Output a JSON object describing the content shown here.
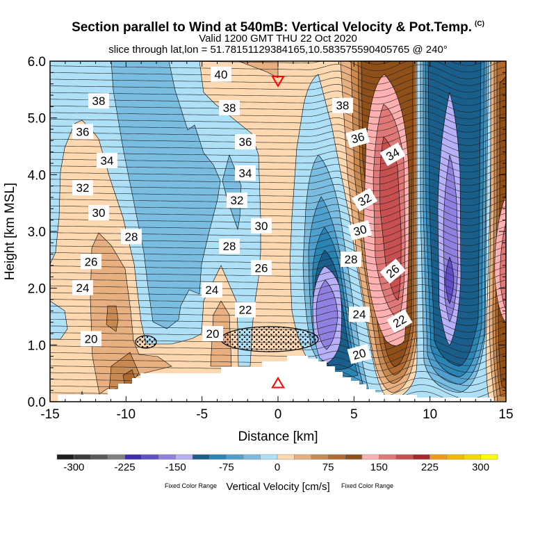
{
  "chart_data": {
    "type": "contour",
    "title": "Section parallel to Wind at 540mB: Vertical Velocity & Pot.Temp.",
    "title_mark": "(C)",
    "subtitle": "Valid 1200 GMT THU 22 Oct 2020",
    "subtitle2": "slice through lat,lon = 51.78151129384165,10.583575590405765 @ 240°",
    "xlabel": "Distance [km]",
    "ylabel": "Height [km MSL]",
    "xlim": [
      -15,
      15
    ],
    "ylim": [
      0,
      6
    ],
    "xticks": [
      "-15",
      "-10",
      "-5",
      "0",
      "5",
      "10",
      "15"
    ],
    "yticks": [
      "0.0",
      "1.0",
      "2.0",
      "3.0",
      "4.0",
      "5.0",
      "6.0"
    ],
    "filled_field": "Vertical Velocity [cm/s]",
    "contour_field": "Potential Temperature",
    "isentrope_labels": [
      {
        "value": "38",
        "x": -11.8,
        "h": 5.3
      },
      {
        "value": "36",
        "x": -12.85,
        "h": 4.76
      },
      {
        "value": "34",
        "x": -11.25,
        "h": 4.25
      },
      {
        "value": "32",
        "x": -12.85,
        "h": 3.77
      },
      {
        "value": "30",
        "x": -11.8,
        "h": 3.33
      },
      {
        "value": "28",
        "x": -9.65,
        "h": 2.91
      },
      {
        "value": "26",
        "x": -12.3,
        "h": 2.47
      },
      {
        "value": "24",
        "x": -12.85,
        "h": 2.01
      },
      {
        "value": "20",
        "x": -12.3,
        "h": 1.11
      },
      {
        "value": "40",
        "x": -3.75,
        "h": 5.77
      },
      {
        "value": "38",
        "x": -3.2,
        "h": 5.18
      },
      {
        "value": "36",
        "x": -2.15,
        "h": 4.58
      },
      {
        "value": "34",
        "x": -2.15,
        "h": 4.03
      },
      {
        "value": "32",
        "x": -2.7,
        "h": 3.55
      },
      {
        "value": "30",
        "x": -1.1,
        "h": 3.1
      },
      {
        "value": "28",
        "x": -3.2,
        "h": 2.74
      },
      {
        "value": "26",
        "x": -1.1,
        "h": 2.36
      },
      {
        "value": "24",
        "x": -4.35,
        "h": 1.97
      },
      {
        "value": "22",
        "x": -2.15,
        "h": 1.62
      },
      {
        "value": "20",
        "x": -4.3,
        "h": 1.2
      },
      {
        "value": "38",
        "x": 4.25,
        "h": 5.22
      },
      {
        "value": "36",
        "x": 5.25,
        "h": 4.65
      },
      {
        "value": "34",
        "x": 7.55,
        "h": 4.36
      },
      {
        "value": "32",
        "x": 5.7,
        "h": 3.56
      },
      {
        "value": "30",
        "x": 5.4,
        "h": 3.02
      },
      {
        "value": "28",
        "x": 4.8,
        "h": 2.51
      },
      {
        "value": "26",
        "x": 7.55,
        "h": 2.3
      },
      {
        "value": "24",
        "x": 5.35,
        "h": 1.54
      },
      {
        "value": "22",
        "x": 8.0,
        "h": 1.42
      },
      {
        "value": "20",
        "x": 5.35,
        "h": 0.84
      }
    ],
    "markers": [
      {
        "name": "slice point aloft",
        "symbol": "down-triangle",
        "x": 0,
        "h": 5.65,
        "color": "#ff0000"
      },
      {
        "name": "slice point surface",
        "symbol": "up-triangle",
        "x": 0,
        "h": 0.33,
        "color": "#ff0000"
      }
    ],
    "colorbar": {
      "title": "Vertical Velocity [cm/s]",
      "note_left": "Fixed Color Range",
      "note_right": "Fixed Color Range",
      "labels": [
        "-300",
        "-225",
        "-150",
        "-75",
        "0",
        "75",
        "150",
        "225",
        "300"
      ],
      "colors": [
        "#1e1e1e",
        "#3c3c3c",
        "#5a5a5a",
        "#808080",
        "#3f2fb0",
        "#6050c8",
        "#9080e0",
        "#b8b0f8",
        "#1a5e8c",
        "#2a85b5",
        "#4fa0cf",
        "#7bbde0",
        "#aee0f8",
        "#ffd8b0",
        "#e8b080",
        "#c88a50",
        "#b06a30",
        "#8f4f18",
        "#ffb0b0",
        "#e07878",
        "#c85050",
        "#a82828",
        "#f59a18",
        "#f5b800",
        "#f8d800",
        "#ffff00"
      ]
    }
  }
}
